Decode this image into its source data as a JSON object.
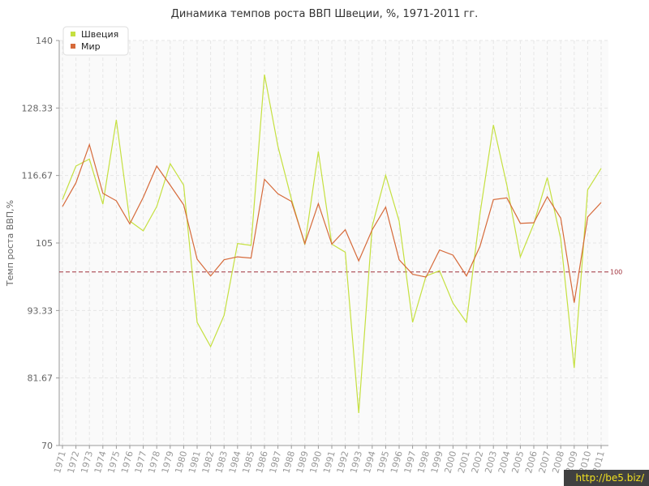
{
  "chart_data": {
    "type": "line",
    "title": "Динамика темпов роста ВВП Швеции, %, 1971-2011 гг.",
    "ylabel": "Темп роста ВВП,%",
    "xlabel": "",
    "ylim": [
      70,
      140
    ],
    "yticks": [
      "70",
      "81.67",
      "93.33",
      "105",
      "116.67",
      "128.33",
      "140"
    ],
    "categories": [
      "1971",
      "1972",
      "1973",
      "1974",
      "1975",
      "1976",
      "1977",
      "1978",
      "1979",
      "1980",
      "1981",
      "1982",
      "1983",
      "1984",
      "1985",
      "1986",
      "1987",
      "1988",
      "1989",
      "1990",
      "1991",
      "1992",
      "1993",
      "1994",
      "1995",
      "1996",
      "1997",
      "1998",
      "1999",
      "2000",
      "2001",
      "2002",
      "2003",
      "2004",
      "2005",
      "2006",
      "2007",
      "2008",
      "2009",
      "2010",
      "2011"
    ],
    "series": [
      {
        "name": "Швеция",
        "color": "#c5e040",
        "values": [
          112.5,
          118.3,
          119.5,
          111.7,
          126.3,
          108.8,
          107.1,
          111.3,
          118.7,
          115.0,
          91.3,
          87.1,
          92.5,
          104.9,
          104.6,
          134.1,
          121.7,
          112.6,
          104.7,
          120.8,
          104.8,
          103.4,
          75.6,
          107.9,
          116.7,
          108.8,
          91.3,
          99.3,
          100.2,
          94.6,
          91.3,
          110.0,
          125.4,
          115.0,
          102.6,
          108.3,
          116.3,
          105.7,
          83.4,
          114.2,
          117.9
        ]
      },
      {
        "name": "Мир",
        "color": "#d66a3a",
        "values": [
          111.3,
          115.4,
          122.0,
          113.6,
          112.3,
          108.3,
          112.9,
          118.3,
          115.0,
          111.6,
          102.2,
          99.3,
          102.1,
          102.6,
          102.4,
          116.0,
          113.5,
          112.2,
          104.9,
          111.8,
          104.8,
          107.3,
          101.9,
          107.3,
          111.2,
          102.1,
          99.6,
          99.1,
          103.8,
          102.9,
          99.3,
          104.4,
          112.5,
          112.8,
          108.4,
          108.5,
          113.0,
          109.3,
          94.7,
          109.5,
          112.0
        ]
      }
    ],
    "reference_line": {
      "value": 100,
      "label": "100",
      "color": "#a0303a"
    },
    "grid": true,
    "legend_position": "top-left"
  },
  "watermark": "http://be5.biz/"
}
